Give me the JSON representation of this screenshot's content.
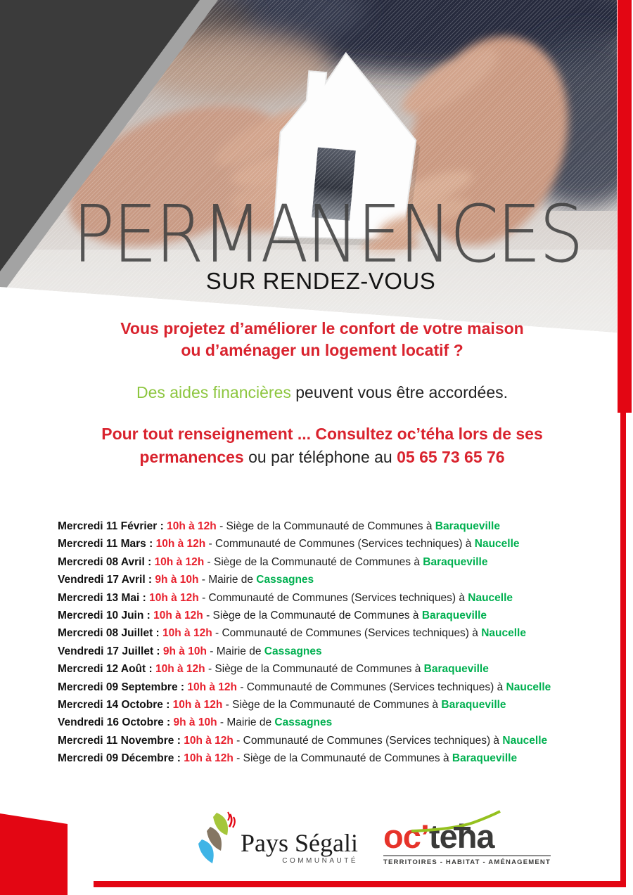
{
  "poster": {
    "title": "PERMANENCES",
    "subtitle": "SUR RENDEZ-VOUS",
    "question": {
      "line1": "Vous projetez d’améliorer le confort de votre maison",
      "line2": "ou d’aménager un logement locatif ?"
    },
    "aid": {
      "highlight": "Des aides financières",
      "rest": " peuvent vous être accordées."
    },
    "contact": {
      "line1": "Pour tout renseignement ... Consultez oc’téha lors de ses",
      "line2_red": "permanences",
      "line2_plain": " ou par téléphone au ",
      "phone": "05 65 73 65 76"
    }
  },
  "schedule": {
    "items": [
      {
        "day": "Mercredi 11 Février :",
        "time": "10h à 12h",
        "place": "- Siège de la Communauté de Communes à",
        "city": "Baraqueville"
      },
      {
        "day": "Mercredi 11 Mars :",
        "time": "10h à 12h",
        "place": "- Communauté de Communes (Services techniques) à",
        "city": "Naucelle"
      },
      {
        "day": "Mercredi 08 Avril :",
        "time": "10h à 12h",
        "place": "- Siège de la Communauté de Communes à",
        "city": "Baraqueville"
      },
      {
        "day": "Vendredi 17 Avril :",
        "time": "9h à 10h",
        "place": "- Mairie de",
        "city": "Cassagnes"
      },
      {
        "day": "Mercredi 13 Mai :",
        "time": "10h à 12h",
        "place": "- Communauté de Communes (Services techniques) à",
        "city": "Naucelle"
      },
      {
        "day": "Mercredi 10 Juin :",
        "time": "10h à 12h",
        "place": "- Siège de la Communauté de Communes à",
        "city": "Baraqueville"
      },
      {
        "day": "Mercredi 08 Juillet :",
        "time": "10h à 12h",
        "place": "- Communauté de Communes (Services techniques) à",
        "city": "Naucelle"
      },
      {
        "day": "Vendredi 17 Juillet :",
        "time": "9h à 10h",
        "place": "- Mairie de",
        "city": "Cassagnes"
      },
      {
        "day": "Mercredi 12 Août :",
        "time": "10h à 12h",
        "place": "- Siège de la Communauté de Communes à",
        "city": "Baraqueville"
      },
      {
        "day": "Mercredi 09 Septembre :",
        "time": "10h à 12h",
        "place": "- Communauté de Communes (Services techniques) à",
        "city": "Naucelle"
      },
      {
        "day": "Mercredi 14 Octobre :",
        "time": "10h à 12h",
        "place": "- Siège de la Communauté de Communes à",
        "city": "Baraqueville"
      },
      {
        "day": "Vendredi 16 Octobre :",
        "time": "9h à 10h",
        "place": "- Mairie de",
        "city": "Cassagnes"
      },
      {
        "day": "Mercredi 11 Novembre :",
        "time": "10h à 12h",
        "place": "- Communauté de Communes (Services techniques) à",
        "city": "Naucelle"
      },
      {
        "day": "Mercredi 09 Décembre :",
        "time": "10h à 12h",
        "place": "- Siège de la Communauté de Communes à",
        "city": "Baraqueville"
      }
    ]
  },
  "footer": {
    "pays_segali": {
      "name": "Pays Ségali",
      "subtitle": "COMMUNAUTÉ"
    },
    "octeha": {
      "prefix": "oc’",
      "rest": "teha",
      "tagline": "TERRITOIRES - HABITAT - AMÉNAGEMENT"
    }
  },
  "colors": {
    "accent_red": "#e30613",
    "text_red": "#d9232e",
    "time_red": "#e8212e",
    "city_green": "#00b050",
    "lime_green": "#8dc63f",
    "octeha_red": "#e6332a",
    "swoosh_green": "#95c11f",
    "dark_triangle": "#3b3b3b"
  }
}
